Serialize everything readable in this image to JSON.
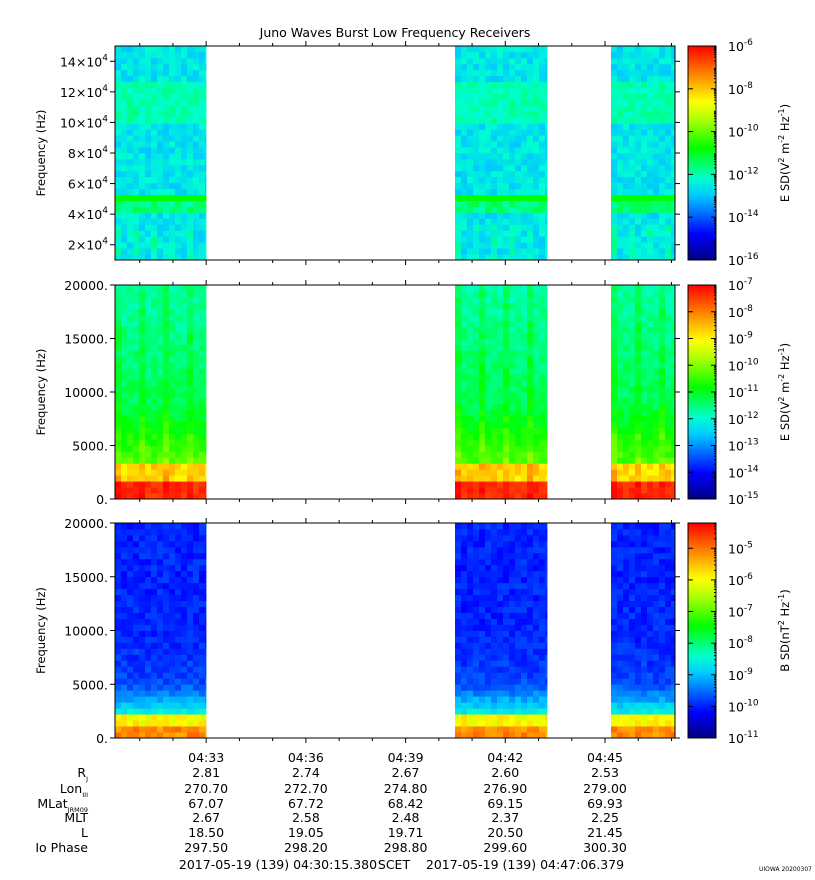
{
  "title": "Juno Waves Burst Low Frequency Receivers",
  "credit": "UIOWA 20200307",
  "chart_data": [
    {
      "type": "heatmap",
      "ylabel": "Frequency (Hz)",
      "ylim": [
        10000,
        150000
      ],
      "yticks": [
        {
          "value": 20000,
          "m": "2",
          "e": "4"
        },
        {
          "value": 40000,
          "m": "4",
          "e": "4"
        },
        {
          "value": 60000,
          "m": "6",
          "e": "4"
        },
        {
          "value": 80000,
          "m": "8",
          "e": "4"
        },
        {
          "value": 100000,
          "m": "10",
          "e": "4"
        },
        {
          "value": 120000,
          "m": "12",
          "e": "4"
        },
        {
          "value": 140000,
          "m": "14",
          "e": "4"
        }
      ],
      "data_intervals": [
        [
          "04:30:15",
          "04:33:00"
        ],
        [
          "04:40:30",
          "04:43:15"
        ],
        [
          "04:45:10",
          "04:47:06"
        ]
      ],
      "palette": "Juno Waves Burst Low Frequency Receivers",
      "colorbar": {
        "label": "E SD (V2 m-2 Hz-1)",
        "label_parts": {
          "pre": "E SD(V",
          "s1": "2",
          "mid": " m",
          "s2": "-2",
          "mid2": " Hz",
          "s3": "-1",
          "post": ")"
        },
        "scale": "log",
        "range": [
          -16,
          -6
        ],
        "ticks": [
          {
            "exp": -6,
            "text": "-6"
          },
          {
            "exp": -8,
            "text": "-8"
          },
          {
            "exp": -10,
            "text": "-10"
          },
          {
            "exp": -12,
            "text": "-12"
          },
          {
            "exp": -14,
            "text": "-14"
          },
          {
            "exp": -16,
            "text": "-16"
          }
        ]
      }
    },
    {
      "type": "heatmap",
      "ylabel": "Frequency (Hz)",
      "ylim": [
        0,
        20000
      ],
      "yticks": [
        {
          "value": 0,
          "text": "0."
        },
        {
          "value": 5000,
          "text": "5000."
        },
        {
          "value": 10000,
          "text": "10000."
        },
        {
          "value": 15000,
          "text": "15000."
        },
        {
          "value": 20000,
          "text": "20000."
        }
      ],
      "data_intervals": [
        [
          "04:30:15",
          "04:33:00"
        ],
        [
          "04:40:30",
          "04:43:15"
        ],
        [
          "04:45:10",
          "04:47:06"
        ]
      ],
      "colorbar": {
        "label": "E SD (V2 m-2 Hz-1)",
        "label_parts": {
          "pre": "E SD(V",
          "s1": "2",
          "mid": " m",
          "s2": "-2",
          "mid2": " Hz",
          "s3": "-1",
          "post": ")"
        },
        "scale": "log",
        "range": [
          -15,
          -7
        ],
        "ticks": [
          {
            "exp": -7,
            "text": "-7"
          },
          {
            "exp": -8,
            "text": "-8"
          },
          {
            "exp": -9,
            "text": "-9"
          },
          {
            "exp": -10,
            "text": "-10"
          },
          {
            "exp": -11,
            "text": "-11"
          },
          {
            "exp": -12,
            "text": "-12"
          },
          {
            "exp": -13,
            "text": "-13"
          },
          {
            "exp": -14,
            "text": "-14"
          },
          {
            "exp": -15,
            "text": "-15"
          }
        ]
      }
    },
    {
      "type": "heatmap",
      "ylabel": "Frequency (Hz)",
      "ylim": [
        0,
        20000
      ],
      "yticks": [
        {
          "value": 0,
          "text": "0."
        },
        {
          "value": 5000,
          "text": "5000."
        },
        {
          "value": 10000,
          "text": "10000."
        },
        {
          "value": 15000,
          "text": "15000."
        },
        {
          "value": 20000,
          "text": "20000."
        }
      ],
      "data_intervals": [
        [
          "04:30:15",
          "04:33:00"
        ],
        [
          "04:40:30",
          "04:43:15"
        ],
        [
          "04:45:10",
          "04:47:06"
        ]
      ],
      "colorbar": {
        "label": "B SD (nT2 Hz-1)",
        "label_parts": {
          "pre": "B SD(nT",
          "s1": "2",
          "mid": " Hz",
          "s2": "-1",
          "mid2": "",
          "s3": "",
          "post": ")"
        },
        "scale": "log",
        "range": [
          -11,
          -4.2
        ],
        "ticks": [
          {
            "exp": -5,
            "text": "-5"
          },
          {
            "exp": -6,
            "text": "-6"
          },
          {
            "exp": -7,
            "text": "-7"
          },
          {
            "exp": -8,
            "text": "-8"
          },
          {
            "exp": -9,
            "text": "-9"
          },
          {
            "exp": -10,
            "text": "-10"
          },
          {
            "exp": -11,
            "text": "-11"
          }
        ]
      }
    }
  ],
  "time_axis": {
    "start": "04:30:15.380",
    "end": "04:47:06.379",
    "ticks": [
      "04:33",
      "04:36",
      "04:39",
      "04:42",
      "04:45"
    ]
  },
  "ephemeris": [
    {
      "label": "R",
      "sub": "J",
      "values": [
        "2.81",
        "2.74",
        "2.67",
        "2.60",
        "2.53"
      ]
    },
    {
      "label": "Lon",
      "sub": "III",
      "values": [
        "270.70",
        "272.70",
        "274.80",
        "276.90",
        "279.00"
      ]
    },
    {
      "label": "MLat",
      "sub": "JRM09",
      "values": [
        "67.07",
        "67.72",
        "68.42",
        "69.15",
        "69.93"
      ]
    },
    {
      "label": "MLT",
      "sub": "",
      "values": [
        "2.67",
        "2.58",
        "2.48",
        "2.37",
        "2.25"
      ]
    },
    {
      "label": "L",
      "sub": "",
      "values": [
        "18.50",
        "19.05",
        "19.71",
        "20.50",
        "21.45"
      ]
    },
    {
      "label": "Io Phase",
      "sub": "",
      "values": [
        "297.50",
        "298.20",
        "298.80",
        "299.60",
        "300.30"
      ]
    }
  ],
  "footer": {
    "start": "2017-05-19 (139) 04:30:15.380",
    "mid": "SCET",
    "end": "2017-05-19 (139) 04:47:06.379"
  }
}
